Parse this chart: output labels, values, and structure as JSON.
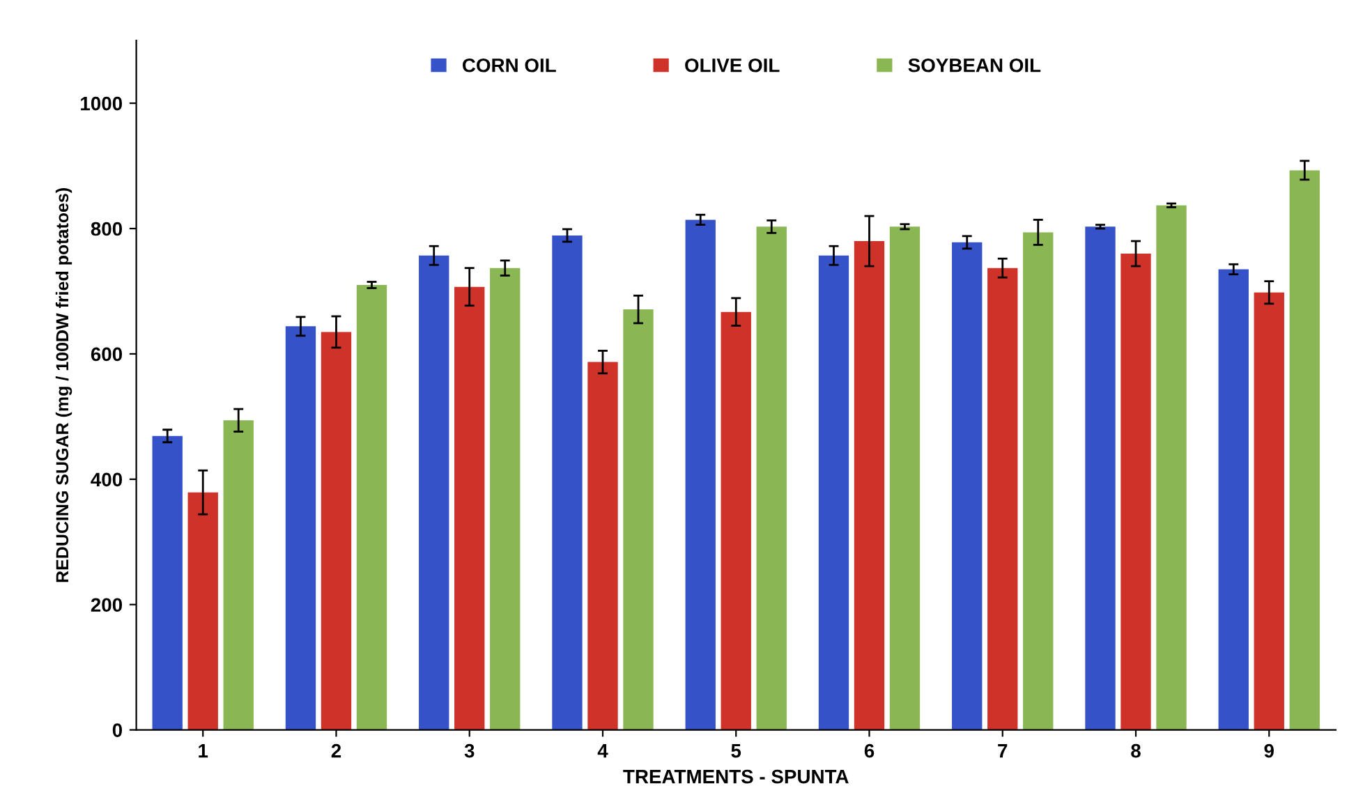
{
  "chart_data": {
    "type": "bar",
    "xlabel": "TREATMENTS - SPUNTA",
    "ylabel": "REDUCING SUGAR (mg / 100DW fried potatoes)",
    "categories": [
      "1",
      "2",
      "3",
      "4",
      "5",
      "6",
      "7",
      "8",
      "9"
    ],
    "series": [
      {
        "name": "CORN OIL",
        "color": "#3552c8",
        "values": [
          469,
          644,
          757,
          789,
          814,
          757,
          778,
          803,
          735
        ],
        "errors": [
          10,
          15,
          15,
          10,
          8,
          15,
          10,
          3,
          8
        ]
      },
      {
        "name": "OLIVE OIL",
        "color": "#cf3229",
        "values": [
          379,
          635,
          707,
          587,
          667,
          780,
          737,
          760,
          698
        ],
        "errors": [
          35,
          25,
          30,
          18,
          22,
          40,
          15,
          20,
          18
        ]
      },
      {
        "name": "SOYBEAN OIL",
        "color": "#8bb654",
        "values": [
          494,
          710,
          737,
          671,
          803,
          803,
          794,
          837,
          893
        ],
        "errors": [
          18,
          5,
          12,
          22,
          10,
          4,
          20,
          3,
          15
        ]
      }
    ],
    "ylim": [
      0,
      1100
    ],
    "yticks": [
      0,
      200,
      400,
      600,
      800,
      1000
    ],
    "grid": false,
    "legend": "top"
  }
}
